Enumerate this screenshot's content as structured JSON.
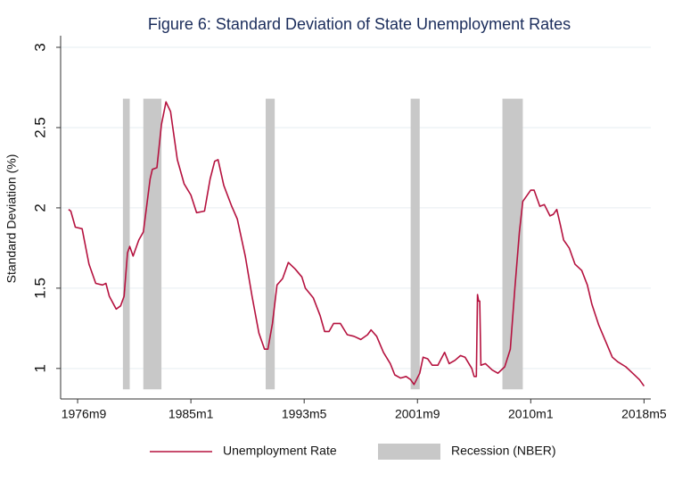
{
  "chart_data": {
    "type": "line",
    "title": "Figure 6: Standard Deviation of State Unemployment Rates",
    "y_label": "Standard Deviation (%)",
    "x": [
      "1976m1",
      "1976m3",
      "1976m7",
      "1977m1",
      "1977m7",
      "1978m1",
      "1978m7",
      "1978m10",
      "1979m1",
      "1979m7",
      "1979m11",
      "1980m2",
      "1980m5",
      "1980m7",
      "1980m10",
      "1981m3",
      "1981m7",
      "1982m1",
      "1982m3",
      "1982m7",
      "1982m11",
      "1983m3",
      "1983m7",
      "1984m1",
      "1984m7",
      "1985m1",
      "1985m6",
      "1986m1",
      "1986m6",
      "1986m10",
      "1987m1",
      "1987m6",
      "1988m1",
      "1988m6",
      "1989m1",
      "1989m7",
      "1990m1",
      "1990m6",
      "1990m9",
      "1991m1",
      "1991m5",
      "1991m10",
      "1992m3",
      "1992m9",
      "1993m3",
      "1993m6",
      "1994m1",
      "1994m7",
      "1994m11",
      "1995m3",
      "1995m7",
      "1996m1",
      "1996m7",
      "1997m1",
      "1997m7",
      "1998m1",
      "1998m4",
      "1998m9",
      "1999m3",
      "1999m9",
      "2000m1",
      "2000m6",
      "2000m11",
      "2001m3",
      "2001m6",
      "2001m11",
      "2002m2",
      "2002m6",
      "2002m10",
      "2003m3",
      "2003m9",
      "2004m1",
      "2004m6",
      "2004m11",
      "2005m3",
      "2005m9",
      "2005m11",
      "2006m1",
      "2006m2",
      "2006m3",
      "2006m4",
      "2006m5",
      "2006m9",
      "2007m3",
      "2007m8",
      "2008m2",
      "2008m7",
      "2008m11",
      "2009m3",
      "2009m6",
      "2009m9",
      "2010m1",
      "2010m4",
      "2010m9",
      "2011m1",
      "2011m6",
      "2011m9",
      "2011m12",
      "2012m3",
      "2012m6",
      "2012m11",
      "2013m4",
      "2013m10",
      "2014m3",
      "2014m7",
      "2015m1",
      "2015m7",
      "2016m1",
      "2016m6",
      "2017m1",
      "2017m7",
      "2018m1",
      "2018m5"
    ],
    "series": [
      {
        "name": "Unemployment Rate",
        "color": "#b5123f",
        "values": [
          1.99,
          1.98,
          1.88,
          1.87,
          1.65,
          1.53,
          1.52,
          1.53,
          1.45,
          1.37,
          1.39,
          1.45,
          1.72,
          1.76,
          1.7,
          1.8,
          1.85,
          2.18,
          2.24,
          2.25,
          2.52,
          2.66,
          2.6,
          2.3,
          2.15,
          2.08,
          1.97,
          1.98,
          2.18,
          2.29,
          2.3,
          2.14,
          2.01,
          1.93,
          1.7,
          1.45,
          1.22,
          1.12,
          1.12,
          1.28,
          1.52,
          1.56,
          1.66,
          1.62,
          1.57,
          1.5,
          1.44,
          1.33,
          1.23,
          1.23,
          1.28,
          1.28,
          1.21,
          1.2,
          1.18,
          1.21,
          1.24,
          1.2,
          1.1,
          1.03,
          0.96,
          0.94,
          0.95,
          0.93,
          0.9,
          0.97,
          1.07,
          1.06,
          1.02,
          1.02,
          1.1,
          1.03,
          1.05,
          1.08,
          1.07,
          1.0,
          0.95,
          0.95,
          1.46,
          1.42,
          1.42,
          1.02,
          1.03,
          0.99,
          0.97,
          1.01,
          1.12,
          1.5,
          1.85,
          2.04,
          2.07,
          2.11,
          2.11,
          2.01,
          2.02,
          1.95,
          1.96,
          1.99,
          1.9,
          1.8,
          1.75,
          1.65,
          1.61,
          1.52,
          1.4,
          1.27,
          1.17,
          1.07,
          1.04,
          1.01,
          0.97,
          0.93,
          0.89
        ]
      }
    ],
    "recessions": {
      "name": "Recession (NBER)",
      "color": "#c8c8c8",
      "base": 0.87,
      "top": 2.68,
      "periods": [
        {
          "start": "1980m1",
          "end": "1980m7"
        },
        {
          "start": "1981m7",
          "end": "1982m11"
        },
        {
          "start": "1990m7",
          "end": "1991m3"
        },
        {
          "start": "2001m3",
          "end": "2001m11"
        },
        {
          "start": "2007m12",
          "end": "2009m6"
        }
      ]
    },
    "xlim": [
      "1975m6",
      "2018m11"
    ],
    "xticks": [
      "1976m9",
      "1985m1",
      "1993m5",
      "2001m9",
      "2010m1",
      "2018m5"
    ],
    "ylim": [
      0.81,
      3
    ],
    "yticks": [
      1,
      1.5,
      2,
      2.5,
      3
    ],
    "grid": true
  }
}
